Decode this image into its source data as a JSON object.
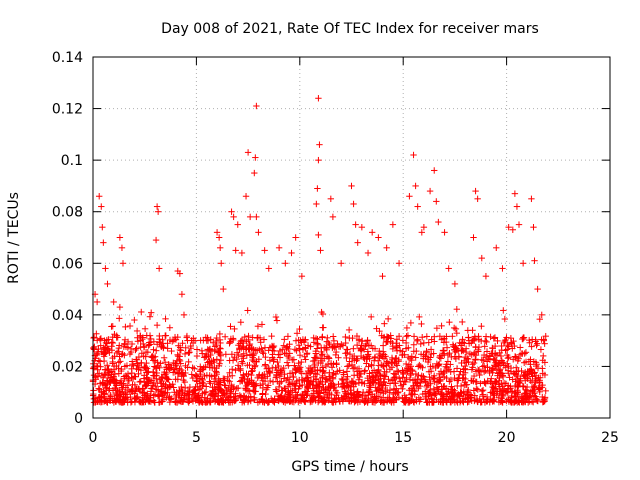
{
  "chart_data": {
    "type": "scatter",
    "title": "Day 008 of 2021, Rate Of TEC Index for receiver mars",
    "xlabel": "GPS time / hours",
    "ylabel": "ROTI / TECUs",
    "xlim": [
      0,
      25
    ],
    "ylim": [
      0,
      0.14
    ],
    "x_ticks": [
      "0",
      "5",
      "10",
      "15",
      "20",
      "25"
    ],
    "y_ticks": [
      "0",
      "0.02",
      "0.04",
      "0.06",
      "0.08",
      "0.1",
      "0.12",
      "0.14"
    ],
    "grid": true,
    "marker": "+",
    "color": "#ff0000",
    "data_extent_x": [
      0,
      21.9
    ],
    "series": [
      {
        "points": [
          [
            0.1,
            0.048
          ],
          [
            0.2,
            0.045
          ],
          [
            0.3,
            0.086
          ],
          [
            0.4,
            0.082
          ],
          [
            0.45,
            0.074
          ],
          [
            0.5,
            0.068
          ],
          [
            0.6,
            0.058
          ],
          [
            0.7,
            0.052
          ],
          [
            1.0,
            0.045
          ],
          [
            1.3,
            0.07
          ],
          [
            1.4,
            0.066
          ],
          [
            1.45,
            0.06
          ],
          [
            1.3,
            0.043
          ],
          [
            2.0,
            0.038
          ],
          [
            2.6,
            0.032
          ],
          [
            3.1,
            0.082
          ],
          [
            3.15,
            0.08
          ],
          [
            3.2,
            0.058
          ],
          [
            3.05,
            0.069
          ],
          [
            3.1,
            0.036
          ],
          [
            4.1,
            0.057
          ],
          [
            4.2,
            0.056
          ],
          [
            4.3,
            0.048
          ],
          [
            4.4,
            0.04
          ],
          [
            5.5,
            0.03
          ],
          [
            6.0,
            0.072
          ],
          [
            6.1,
            0.07
          ],
          [
            6.15,
            0.066
          ],
          [
            6.2,
            0.06
          ],
          [
            6.3,
            0.05
          ],
          [
            6.7,
            0.08
          ],
          [
            6.8,
            0.078
          ],
          [
            6.9,
            0.065
          ],
          [
            7.0,
            0.075
          ],
          [
            7.2,
            0.064
          ],
          [
            7.4,
            0.086
          ],
          [
            7.6,
            0.078
          ],
          [
            7.9,
            0.121
          ],
          [
            7.85,
            0.101
          ],
          [
            7.8,
            0.095
          ],
          [
            7.5,
            0.103
          ],
          [
            7.9,
            0.078
          ],
          [
            8.0,
            0.072
          ],
          [
            8.3,
            0.065
          ],
          [
            8.5,
            0.058
          ],
          [
            9.0,
            0.066
          ],
          [
            9.3,
            0.06
          ],
          [
            9.6,
            0.064
          ],
          [
            9.8,
            0.07
          ],
          [
            10.1,
            0.055
          ],
          [
            10.9,
            0.124
          ],
          [
            10.95,
            0.106
          ],
          [
            10.9,
            0.1
          ],
          [
            10.85,
            0.089
          ],
          [
            10.8,
            0.083
          ],
          [
            10.9,
            0.071
          ],
          [
            11.0,
            0.065
          ],
          [
            11.5,
            0.085
          ],
          [
            11.6,
            0.078
          ],
          [
            12.0,
            0.06
          ],
          [
            12.5,
            0.09
          ],
          [
            12.6,
            0.083
          ],
          [
            12.7,
            0.075
          ],
          [
            12.8,
            0.068
          ],
          [
            13.0,
            0.074
          ],
          [
            13.3,
            0.064
          ],
          [
            13.5,
            0.072
          ],
          [
            13.8,
            0.07
          ],
          [
            14.0,
            0.055
          ],
          [
            14.2,
            0.066
          ],
          [
            14.5,
            0.075
          ],
          [
            14.8,
            0.06
          ],
          [
            15.3,
            0.086
          ],
          [
            15.5,
            0.102
          ],
          [
            15.6,
            0.09
          ],
          [
            15.7,
            0.082
          ],
          [
            15.9,
            0.072
          ],
          [
            16.0,
            0.074
          ],
          [
            16.3,
            0.088
          ],
          [
            16.5,
            0.096
          ],
          [
            16.6,
            0.084
          ],
          [
            16.7,
            0.076
          ],
          [
            17.0,
            0.072
          ],
          [
            17.2,
            0.058
          ],
          [
            17.5,
            0.052
          ],
          [
            18.5,
            0.088
          ],
          [
            18.6,
            0.085
          ],
          [
            18.4,
            0.07
          ],
          [
            18.8,
            0.062
          ],
          [
            19.0,
            0.055
          ],
          [
            19.5,
            0.066
          ],
          [
            19.8,
            0.058
          ],
          [
            20.1,
            0.074
          ],
          [
            20.3,
            0.073
          ],
          [
            20.4,
            0.087
          ],
          [
            20.5,
            0.082
          ],
          [
            20.6,
            0.075
          ],
          [
            20.8,
            0.06
          ],
          [
            21.2,
            0.085
          ],
          [
            21.3,
            0.074
          ],
          [
            21.35,
            0.061
          ],
          [
            21.5,
            0.05
          ],
          [
            21.7,
            0.04
          ],
          [
            21.8,
            0.03
          ]
        ]
      }
    ]
  }
}
